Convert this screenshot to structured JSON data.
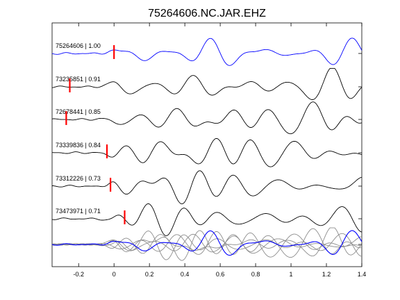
{
  "chart_data": {
    "type": "line",
    "title": "75264606.NC.JAR.EHZ",
    "xlim": [
      -0.35,
      1.4
    ],
    "x_ticks": [
      -0.2,
      0,
      0.2,
      0.4,
      0.6,
      0.8,
      1,
      1.2,
      1.4
    ],
    "x_tick_labels": [
      "-0.2",
      "0",
      "0.2",
      "0.4",
      "0.6",
      "0.8",
      "1",
      "1.2",
      "1.4"
    ],
    "grid": false,
    "colors": {
      "primary": "#0000ff",
      "trace": "#000000",
      "overlay": "#8c8c8c",
      "pick": "#ff0000"
    },
    "series": [
      {
        "name": "75264606 | 1.00",
        "label": "75264606 | 1.00",
        "pick_time": 0.0,
        "seed": 1,
        "color": "#0000ff",
        "primary": true
      },
      {
        "name": "73235851 | 0.91",
        "label": "73235851 | 0.91",
        "pick_time": -0.25,
        "seed": 2,
        "color": "#000000"
      },
      {
        "name": "72678441 | 0.85",
        "label": "72678441 | 0.85",
        "pick_time": -0.27,
        "seed": 3,
        "color": "#000000"
      },
      {
        "name": "73339836 | 0.84",
        "label": "73339836 | 0.84",
        "pick_time": -0.04,
        "seed": 4,
        "color": "#000000"
      },
      {
        "name": "73312226 | 0.73",
        "label": "73312226 | 0.73",
        "pick_time": -0.02,
        "seed": 5,
        "color": "#000000"
      },
      {
        "name": "73473971 | 0.71",
        "label": "73473971 | 0.71",
        "pick_time": 0.06,
        "seed": 6,
        "color": "#000000"
      }
    ]
  }
}
